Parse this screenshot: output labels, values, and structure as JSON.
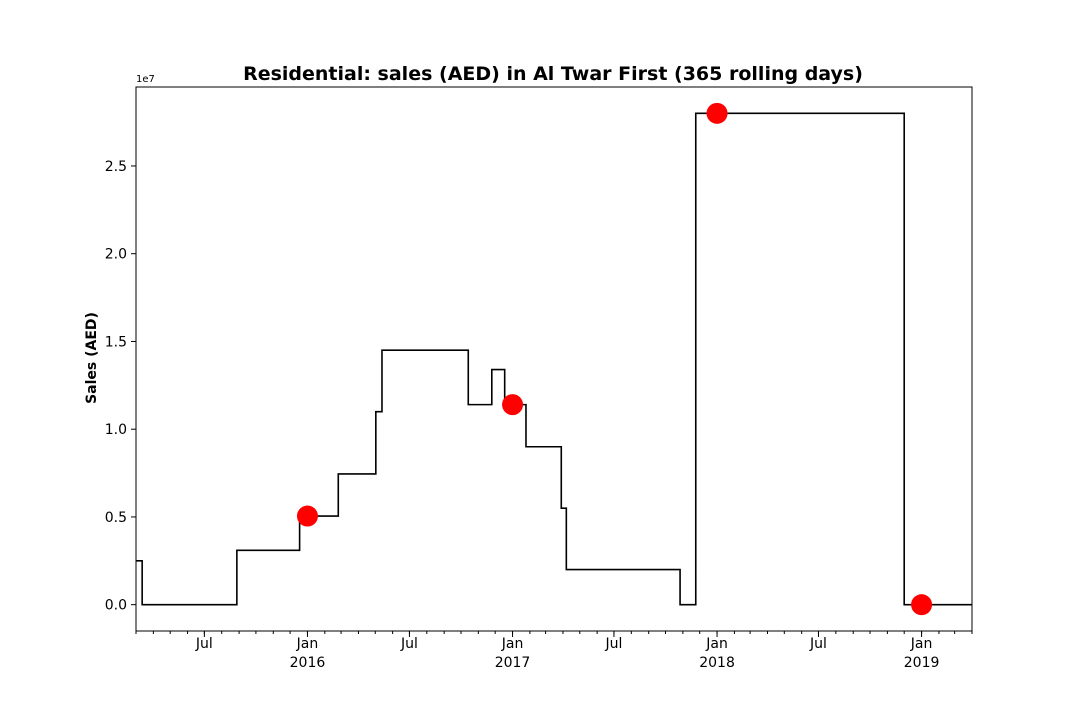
{
  "chart_data": {
    "type": "line",
    "drawstyle": "steps-post",
    "title": "Residential: sales (AED) in Al Twar First (365 rolling days)",
    "xlabel": "",
    "ylabel": "Sales (AED)",
    "y_offset_label": "1e7",
    "xlim": [
      "2015-03-01",
      "2019-04-01"
    ],
    "ylim": [
      -1500000,
      29500000
    ],
    "grid": false,
    "legend": "none",
    "y_ticks": [
      0,
      5000000,
      10000000,
      15000000,
      20000000,
      25000000
    ],
    "y_tick_labels": [
      "0.0",
      "0.5",
      "1.0",
      "1.5",
      "2.0",
      "2.5"
    ],
    "x_ticks": [
      {
        "date": "2015-07-01",
        "label": "Jul"
      },
      {
        "date": "2016-01-01",
        "label": "Jan\n2016"
      },
      {
        "date": "2016-07-01",
        "label": "Jul"
      },
      {
        "date": "2017-01-01",
        "label": "Jan\n2017"
      },
      {
        "date": "2017-07-01",
        "label": "Jul"
      },
      {
        "date": "2018-01-01",
        "label": "Jan\n2018"
      },
      {
        "date": "2018-07-01",
        "label": "Jul"
      },
      {
        "date": "2019-01-01",
        "label": "Jan\n2019"
      }
    ],
    "series": [
      {
        "color": "#000000",
        "points": [
          {
            "x": "2015-03-01",
            "y": 2500000
          },
          {
            "x": "2015-03-12",
            "y": 0
          },
          {
            "x": "2015-08-28",
            "y": 3100000
          },
          {
            "x": "2015-12-18",
            "y": 5050000
          },
          {
            "x": "2016-02-25",
            "y": 7450000
          },
          {
            "x": "2016-05-02",
            "y": 11000000
          },
          {
            "x": "2016-05-13",
            "y": 14500000
          },
          {
            "x": "2016-10-14",
            "y": 11400000
          },
          {
            "x": "2016-11-25",
            "y": 13400000
          },
          {
            "x": "2016-12-18",
            "y": 11400000
          },
          {
            "x": "2017-01-25",
            "y": 9000000
          },
          {
            "x": "2017-03-29",
            "y": 5500000
          },
          {
            "x": "2017-04-07",
            "y": 2000000
          },
          {
            "x": "2017-10-27",
            "y": 0
          },
          {
            "x": "2017-11-24",
            "y": 28000000
          },
          {
            "x": "2018-12-01",
            "y": 0
          },
          {
            "x": "2019-04-01",
            "y": 0
          }
        ]
      }
    ],
    "markers": {
      "color": "#ff0000",
      "points": [
        {
          "x": "2016-01-01",
          "y": 5050000
        },
        {
          "x": "2017-01-01",
          "y": 11400000
        },
        {
          "x": "2018-01-01",
          "y": 28000000
        },
        {
          "x": "2019-01-01",
          "y": 0
        }
      ]
    }
  }
}
